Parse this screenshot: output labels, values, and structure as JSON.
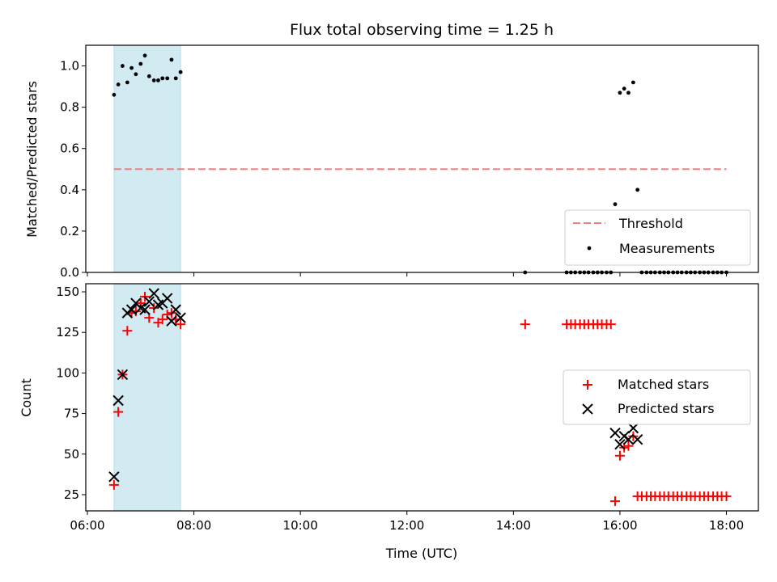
{
  "chart_data": [
    {
      "panel": "top",
      "type": "scatter",
      "title": "Flux total observing time = 1.25 h",
      "xlabel": "",
      "ylabel": "Matched/Predicted stars",
      "x_unit": "hours UTC",
      "xlim": [
        5.97,
        18.6
      ],
      "ylim": [
        0.0,
        1.1
      ],
      "yticks": [
        0.0,
        0.2,
        0.4,
        0.6,
        0.8,
        1.0
      ],
      "ytick_labels": [
        "0.0",
        "0.2",
        "0.4",
        "0.6",
        "0.8",
        "1.0"
      ],
      "shaded_span": {
        "x": [
          6.5,
          7.75
        ],
        "color": "#add8e6"
      },
      "threshold": {
        "name": "Threshold",
        "y": 0.5,
        "x": [
          6.5,
          18.0
        ],
        "color": "#f08080"
      },
      "legend": {
        "placement": "lower-right",
        "entries": [
          "Threshold",
          "Measurements"
        ]
      },
      "series": [
        {
          "name": "Measurements",
          "marker": "dot",
          "color": "#000000",
          "points": [
            [
              6.5,
              0.86
            ],
            [
              6.58,
              0.91
            ],
            [
              6.66,
              1.0
            ],
            [
              6.75,
              0.92
            ],
            [
              6.83,
              0.99
            ],
            [
              6.91,
              0.96
            ],
            [
              7.0,
              1.01
            ],
            [
              7.08,
              1.05
            ],
            [
              7.16,
              0.95
            ],
            [
              7.25,
              0.93
            ],
            [
              7.33,
              0.93
            ],
            [
              7.41,
              0.94
            ],
            [
              7.5,
              0.94
            ],
            [
              7.58,
              1.03
            ],
            [
              7.66,
              0.94
            ],
            [
              7.75,
              0.97
            ],
            [
              14.22,
              0.0
            ],
            [
              15.0,
              0.0
            ],
            [
              15.08,
              0.0
            ],
            [
              15.16,
              0.0
            ],
            [
              15.25,
              0.0
            ],
            [
              15.33,
              0.0
            ],
            [
              15.41,
              0.0
            ],
            [
              15.5,
              0.0
            ],
            [
              15.58,
              0.0
            ],
            [
              15.66,
              0.0
            ],
            [
              15.75,
              0.0
            ],
            [
              15.83,
              0.0
            ],
            [
              15.91,
              0.33
            ],
            [
              16.0,
              0.87
            ],
            [
              16.08,
              0.89
            ],
            [
              16.16,
              0.87
            ],
            [
              16.25,
              0.92
            ],
            [
              16.33,
              0.4
            ],
            [
              16.41,
              0.0
            ],
            [
              16.5,
              0.0
            ],
            [
              16.58,
              0.0
            ],
            [
              16.66,
              0.0
            ],
            [
              16.75,
              0.0
            ],
            [
              16.83,
              0.0
            ],
            [
              16.91,
              0.0
            ],
            [
              17.0,
              0.0
            ],
            [
              17.08,
              0.0
            ],
            [
              17.16,
              0.0
            ],
            [
              17.25,
              0.0
            ],
            [
              17.33,
              0.0
            ],
            [
              17.41,
              0.0
            ],
            [
              17.5,
              0.0
            ],
            [
              17.58,
              0.0
            ],
            [
              17.66,
              0.0
            ],
            [
              17.75,
              0.0
            ],
            [
              17.83,
              0.0
            ],
            [
              17.91,
              0.0
            ],
            [
              18.0,
              0.0
            ]
          ]
        }
      ]
    },
    {
      "panel": "bottom",
      "type": "scatter",
      "title": "",
      "xlabel": "Time (UTC)",
      "ylabel": "Count",
      "x_unit": "hours UTC",
      "xlim": [
        5.97,
        18.6
      ],
      "xticks": [
        6,
        8,
        10,
        12,
        14,
        16,
        18
      ],
      "xtick_labels": [
        "06:00",
        "08:00",
        "10:00",
        "12:00",
        "14:00",
        "16:00",
        "18:00"
      ],
      "ylim": [
        15,
        155
      ],
      "yticks": [
        25,
        50,
        75,
        100,
        125,
        150
      ],
      "ytick_labels": [
        "25",
        "50",
        "75",
        "100",
        "125",
        "150"
      ],
      "shaded_span": {
        "x": [
          6.5,
          7.75
        ],
        "color": "#add8e6"
      },
      "legend": {
        "placement": "center-right",
        "entries": [
          "Matched stars",
          "Predicted stars"
        ]
      },
      "series": [
        {
          "name": "Matched stars",
          "marker": "plus",
          "color": "#ff0000",
          "points": [
            [
              6.5,
              31
            ],
            [
              6.58,
              76
            ],
            [
              6.66,
              99
            ],
            [
              6.75,
              126
            ],
            [
              6.83,
              137
            ],
            [
              6.91,
              138
            ],
            [
              7.0,
              143
            ],
            [
              7.08,
              147
            ],
            [
              7.16,
              134
            ],
            [
              7.25,
              140
            ],
            [
              7.33,
              131
            ],
            [
              7.41,
              133
            ],
            [
              7.5,
              136
            ],
            [
              7.58,
              137
            ],
            [
              7.66,
              133
            ],
            [
              7.75,
              130
            ],
            [
              14.22,
              130
            ],
            [
              15.0,
              130
            ],
            [
              15.08,
              130
            ],
            [
              15.16,
              130
            ],
            [
              15.25,
              130
            ],
            [
              15.33,
              130
            ],
            [
              15.41,
              130
            ],
            [
              15.5,
              130
            ],
            [
              15.58,
              130
            ],
            [
              15.66,
              130
            ],
            [
              15.75,
              130
            ],
            [
              15.83,
              130
            ],
            [
              15.91,
              21
            ],
            [
              16.0,
              49
            ],
            [
              16.08,
              54
            ],
            [
              16.16,
              55
            ],
            [
              16.25,
              61
            ],
            [
              16.33,
              24
            ],
            [
              16.41,
              24
            ],
            [
              16.5,
              24
            ],
            [
              16.58,
              24
            ],
            [
              16.66,
              24
            ],
            [
              16.75,
              24
            ],
            [
              16.83,
              24
            ],
            [
              16.91,
              24
            ],
            [
              17.0,
              24
            ],
            [
              17.08,
              24
            ],
            [
              17.16,
              24
            ],
            [
              17.25,
              24
            ],
            [
              17.33,
              24
            ],
            [
              17.41,
              24
            ],
            [
              17.5,
              24
            ],
            [
              17.58,
              24
            ],
            [
              17.66,
              24
            ],
            [
              17.75,
              24
            ],
            [
              17.83,
              24
            ],
            [
              17.91,
              24
            ],
            [
              18.0,
              24
            ]
          ]
        },
        {
          "name": "Predicted stars",
          "marker": "x",
          "color": "#000000",
          "points": [
            [
              6.5,
              36
            ],
            [
              6.58,
              83
            ],
            [
              6.66,
              99
            ],
            [
              6.75,
              137
            ],
            [
              6.83,
              139
            ],
            [
              6.91,
              143
            ],
            [
              7.0,
              140
            ],
            [
              7.08,
              139
            ],
            [
              7.16,
              144
            ],
            [
              7.25,
              149
            ],
            [
              7.33,
              142
            ],
            [
              7.41,
              143
            ],
            [
              7.5,
              146
            ],
            [
              7.58,
              132
            ],
            [
              7.66,
              139
            ],
            [
              7.75,
              134
            ],
            [
              15.91,
              63
            ],
            [
              16.0,
              56
            ],
            [
              16.08,
              61
            ],
            [
              16.16,
              59
            ],
            [
              16.25,
              66
            ],
            [
              16.33,
              59
            ]
          ]
        }
      ]
    }
  ]
}
